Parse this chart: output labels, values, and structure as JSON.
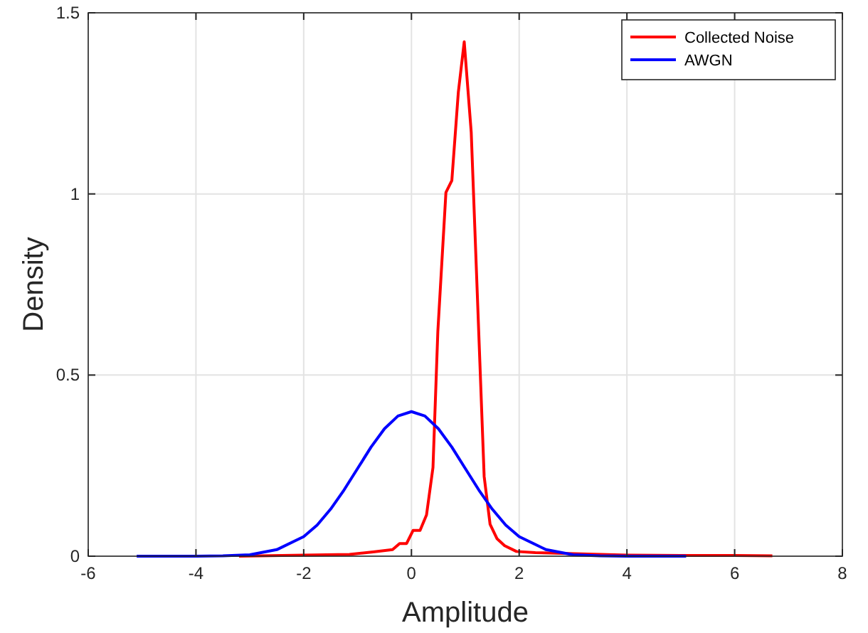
{
  "chart_data": {
    "type": "line",
    "xlabel": "Amplitude",
    "ylabel": "Density",
    "xlim": [
      -6,
      8
    ],
    "ylim": [
      0,
      1.5
    ],
    "xticks": [
      -6,
      -4,
      -2,
      0,
      2,
      4,
      6,
      8
    ],
    "yticks": [
      0,
      0.5,
      1,
      1.5
    ],
    "grid": true,
    "legend": "top right",
    "line_style": "solid",
    "marker": "none",
    "series": [
      {
        "name": "Collected Noise",
        "color": "#ff0000",
        "x": [
          -3.2,
          -2,
          -1.15,
          -0.71,
          -0.35,
          -0.22,
          -0.09,
          0.03,
          0.16,
          0.28,
          0.4,
          0.49,
          0.64,
          0.75,
          0.87,
          0.98,
          1.11,
          1.35,
          1.46,
          1.59,
          1.73,
          1.95,
          2.3,
          4,
          5,
          6,
          6.7
        ],
        "values": [
          0,
          0.003,
          0.005,
          0.012,
          0.018,
          0.035,
          0.035,
          0.071,
          0.071,
          0.114,
          0.245,
          0.62,
          1.004,
          1.037,
          1.28,
          1.42,
          1.17,
          0.22,
          0.088,
          0.048,
          0.029,
          0.013,
          0.01,
          0.003,
          0.002,
          0.002,
          0.001
        ]
      },
      {
        "name": "AWGN",
        "color": "#0000ff",
        "x": [
          -5.1,
          -4,
          -3.5,
          -3,
          -2.5,
          -2,
          -1.75,
          -1.5,
          -1.25,
          -1,
          -0.75,
          -0.5,
          -0.25,
          0,
          0.25,
          0.5,
          0.75,
          1,
          1.25,
          1.5,
          1.75,
          2,
          2.5,
          3,
          3.5,
          4,
          5.1
        ],
        "values": [
          0,
          0,
          0.001,
          0.004,
          0.018,
          0.054,
          0.086,
          0.13,
          0.183,
          0.242,
          0.301,
          0.352,
          0.387,
          0.399,
          0.387,
          0.352,
          0.301,
          0.242,
          0.183,
          0.13,
          0.086,
          0.054,
          0.018,
          0.004,
          0.001,
          0,
          0
        ]
      }
    ]
  }
}
